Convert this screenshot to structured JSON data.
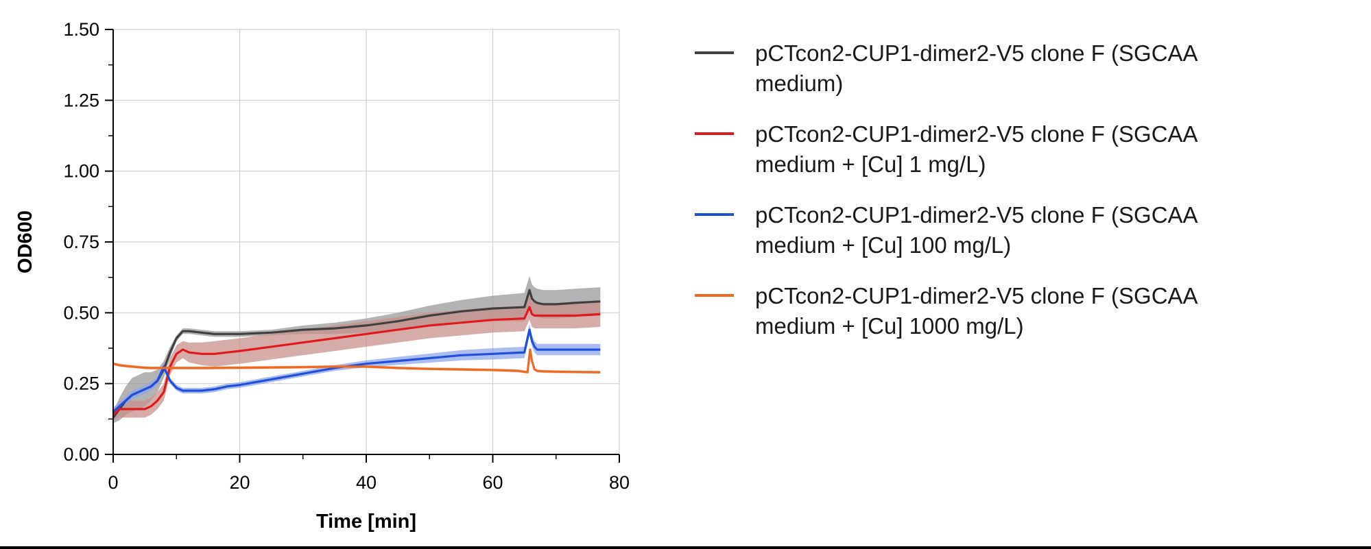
{
  "chart_data": {
    "type": "line",
    "title": "",
    "xlabel": "Time [min]",
    "ylabel": "OD600",
    "xlim": [
      0,
      80
    ],
    "ylim": [
      0,
      1.5
    ],
    "x_ticks": [
      0,
      20,
      40,
      60,
      80
    ],
    "x_tick_labels": [
      "0",
      "20",
      "40",
      "60",
      "80"
    ],
    "y_ticks": [
      0,
      0.25,
      0.5,
      0.75,
      1.0,
      1.25,
      1.5
    ],
    "y_tick_labels": [
      "0.00",
      "0.25",
      "0.50",
      "0.75",
      "1.00",
      "1.25",
      "1.50"
    ],
    "grid": true,
    "legend_position": "right",
    "series": [
      {
        "name": "pCTcon2-CUP1-dimer2-V5 clone F (SGCAA medium)",
        "legend_lines": [
          "pCTcon2-CUP1-dimer2-V5 clone F (SGCAA",
          "medium)"
        ],
        "color": "#404040",
        "band_color": "#9a9a9a",
        "x": [
          0,
          1,
          2,
          3,
          4,
          5,
          6,
          7,
          8,
          9,
          10,
          11,
          12,
          14,
          16,
          18,
          20,
          25,
          30,
          35,
          40,
          45,
          50,
          55,
          60,
          65,
          65.8,
          66.2,
          66.6,
          67,
          68,
          70,
          73,
          77
        ],
        "y": [
          0.13,
          0.16,
          0.19,
          0.21,
          0.22,
          0.23,
          0.24,
          0.26,
          0.3,
          0.36,
          0.41,
          0.435,
          0.435,
          0.43,
          0.425,
          0.425,
          0.425,
          0.43,
          0.44,
          0.445,
          0.455,
          0.47,
          0.49,
          0.505,
          0.515,
          0.52,
          0.58,
          0.55,
          0.54,
          0.535,
          0.53,
          0.53,
          0.535,
          0.54
        ],
        "band": [
          0.02,
          0.04,
          0.05,
          0.06,
          0.06,
          0.06,
          0.05,
          0.04,
          0.03,
          0.02,
          0.01,
          0.01,
          0.01,
          0.01,
          0.01,
          0.01,
          0.01,
          0.01,
          0.015,
          0.02,
          0.025,
          0.03,
          0.035,
          0.04,
          0.045,
          0.05,
          0.05,
          0.05,
          0.05,
          0.05,
          0.05,
          0.05,
          0.05,
          0.05
        ]
      },
      {
        "name": "pCTcon2-CUP1-dimer2-V5 clone F (SGCAA medium + [Cu] 1 mg/L)",
        "legend_lines": [
          "pCTcon2-CUP1-dimer2-V5 clone F (SGCAA",
          "medium + [Cu] 1 mg/L)"
        ],
        "color": "#e0191c",
        "band_color": "#c8908c",
        "x": [
          0,
          1,
          2,
          3,
          4,
          5,
          6,
          7,
          8,
          9,
          10,
          11,
          12,
          14,
          16,
          18,
          20,
          25,
          30,
          35,
          40,
          45,
          50,
          55,
          60,
          65,
          65.8,
          66.2,
          66.6,
          67,
          68,
          70,
          73,
          77
        ],
        "y": [
          0.14,
          0.16,
          0.16,
          0.16,
          0.16,
          0.16,
          0.17,
          0.19,
          0.22,
          0.31,
          0.355,
          0.37,
          0.36,
          0.355,
          0.355,
          0.36,
          0.365,
          0.38,
          0.395,
          0.41,
          0.425,
          0.44,
          0.455,
          0.465,
          0.475,
          0.48,
          0.52,
          0.495,
          0.49,
          0.49,
          0.49,
          0.49,
          0.49,
          0.495
        ],
        "band": [
          0.02,
          0.03,
          0.03,
          0.03,
          0.03,
          0.03,
          0.03,
          0.03,
          0.03,
          0.03,
          0.03,
          0.03,
          0.035,
          0.04,
          0.045,
          0.045,
          0.045,
          0.045,
          0.045,
          0.045,
          0.045,
          0.045,
          0.045,
          0.045,
          0.045,
          0.045,
          0.045,
          0.045,
          0.045,
          0.045,
          0.045,
          0.045,
          0.045,
          0.045
        ]
      },
      {
        "name": "pCTcon2-CUP1-dimer2-V5 clone F (SGCAA medium + [Cu] 100 mg/L)",
        "legend_lines": [
          "pCTcon2-CUP1-dimer2-V5 clone F (SGCAA",
          "medium + [Cu] 100 mg/L)"
        ],
        "color": "#1f4fdb",
        "band_color": "#8fa6ea",
        "x": [
          0,
          1,
          2,
          3,
          4,
          5,
          6,
          7,
          8,
          9,
          10,
          11,
          12,
          14,
          16,
          18,
          20,
          25,
          30,
          35,
          40,
          45,
          50,
          55,
          60,
          65,
          65.8,
          66.2,
          66.6,
          67,
          68,
          70,
          73,
          77
        ],
        "y": [
          0.15,
          0.17,
          0.19,
          0.21,
          0.22,
          0.23,
          0.24,
          0.26,
          0.31,
          0.26,
          0.235,
          0.225,
          0.225,
          0.225,
          0.23,
          0.24,
          0.245,
          0.265,
          0.285,
          0.305,
          0.32,
          0.33,
          0.34,
          0.35,
          0.355,
          0.36,
          0.44,
          0.4,
          0.38,
          0.37,
          0.37,
          0.37,
          0.37,
          0.37
        ],
        "band": [
          0.015,
          0.015,
          0.015,
          0.015,
          0.015,
          0.015,
          0.015,
          0.015,
          0.015,
          0.01,
          0.01,
          0.01,
          0.01,
          0.01,
          0.01,
          0.01,
          0.01,
          0.01,
          0.01,
          0.01,
          0.012,
          0.014,
          0.016,
          0.018,
          0.02,
          0.02,
          0.02,
          0.02,
          0.02,
          0.02,
          0.02,
          0.02,
          0.02,
          0.02
        ]
      },
      {
        "name": "pCTcon2-CUP1-dimer2-V5 clone F (SGCAA medium + [Cu] 1000 mg/L)",
        "legend_lines": [
          "pCTcon2-CUP1-dimer2-V5 clone F (SGCAA",
          "medium + [Cu] 1000 mg/L)"
        ],
        "color": "#ee6a22",
        "band_color": "#f2b08c",
        "x": [
          0,
          1,
          2,
          3,
          4,
          5,
          6,
          7,
          8,
          10,
          12,
          15,
          20,
          25,
          30,
          35,
          40,
          45,
          50,
          55,
          60,
          64,
          65.5,
          65.9,
          66.2,
          66.6,
          67,
          68,
          70,
          73,
          77
        ],
        "y": [
          0.32,
          0.315,
          0.312,
          0.31,
          0.308,
          0.306,
          0.305,
          0.305,
          0.305,
          0.305,
          0.305,
          0.305,
          0.306,
          0.307,
          0.308,
          0.31,
          0.31,
          0.305,
          0.302,
          0.3,
          0.298,
          0.295,
          0.29,
          0.37,
          0.33,
          0.3,
          0.295,
          0.293,
          0.292,
          0.291,
          0.29
        ],
        "band": [
          0.005,
          0.005,
          0.005,
          0.005,
          0.005,
          0.005,
          0.005,
          0.005,
          0.005,
          0.005,
          0.005,
          0.005,
          0.005,
          0.005,
          0.005,
          0.005,
          0.005,
          0.005,
          0.005,
          0.005,
          0.005,
          0.005,
          0.005,
          0.005,
          0.005,
          0.005,
          0.005,
          0.005,
          0.005,
          0.005,
          0.005
        ]
      }
    ]
  }
}
